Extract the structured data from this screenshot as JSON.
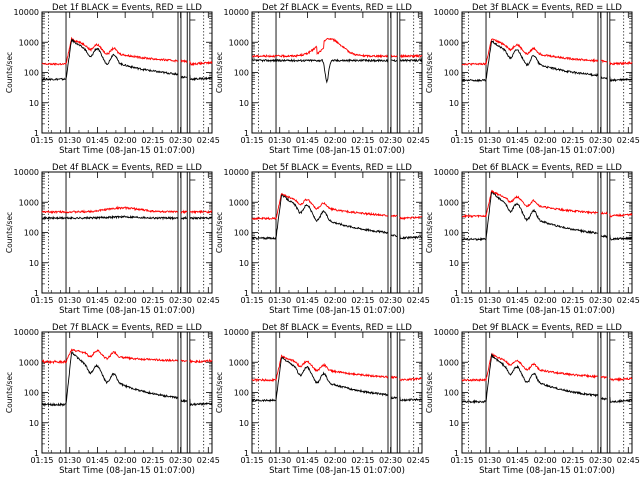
{
  "figure": {
    "start_time_label": "Start Time (08-Jan-15 01:07:00)",
    "ylabel": "Counts/sec",
    "colors": {
      "events": "#000000",
      "lld": "#ff0000",
      "axis": "#000000",
      "background": "#ffffff"
    }
  },
  "chart_data": [
    {
      "type": "line",
      "title": "Det 1f BLACK = Events, RED = LLD",
      "det": 1,
      "profile": "flare",
      "events_base": 60,
      "events_peak": 1200,
      "lld_base": 190,
      "lld_peak": 1300,
      "dip": false,
      "xlabel": "Start Time (08-Jan-15 01:07:00)",
      "ylabel": "Counts/sec",
      "xticks": [
        "01:15",
        "01:30",
        "01:45",
        "02:00",
        "02:15",
        "02:30",
        "02:45"
      ],
      "yticks": [
        "1",
        "10",
        "100",
        "1000",
        "10000"
      ],
      "ylim": [
        1,
        10000
      ],
      "xlim_min": [
        8,
        100
      ],
      "series": [
        {
          "name": "Events",
          "color": "#000000"
        },
        {
          "name": "LLD",
          "color": "#ff0000"
        }
      ]
    },
    {
      "type": "line",
      "title": "Det 2f BLACK = Events, RED = LLD",
      "det": 2,
      "profile": "flat_bump",
      "events_base": 250,
      "events_peak": 260,
      "lld_base": 350,
      "lld_peak": 1300,
      "dip": true,
      "xlabel": "Start Time (08-Jan-15 01:07:00)",
      "ylabel": "Counts/sec",
      "xticks": [
        "01:15",
        "01:30",
        "01:45",
        "02:00",
        "02:15",
        "02:30",
        "02:45"
      ],
      "yticks": [
        "1",
        "10",
        "100",
        "1000",
        "10000"
      ],
      "ylim": [
        1,
        10000
      ],
      "xlim_min": [
        8,
        100
      ],
      "series": [
        {
          "name": "Events",
          "color": "#000000"
        },
        {
          "name": "LLD",
          "color": "#ff0000"
        }
      ]
    },
    {
      "type": "line",
      "title": "Det 3f BLACK = Events, RED = LLD",
      "det": 3,
      "profile": "flare",
      "events_base": 55,
      "events_peak": 1100,
      "lld_base": 190,
      "lld_peak": 1300,
      "dip": false,
      "xlabel": "Start Time (08-Jan-15 01:07:00)",
      "ylabel": "Counts/sec",
      "xticks": [
        "01:15",
        "01:30",
        "01:45",
        "02:00",
        "02:15",
        "02:30",
        "02:45"
      ],
      "yticks": [
        "1",
        "10",
        "100",
        "1000",
        "10000"
      ],
      "ylim": [
        1,
        10000
      ],
      "xlim_min": [
        8,
        100
      ],
      "series": [
        {
          "name": "Events",
          "color": "#000000"
        },
        {
          "name": "LLD",
          "color": "#ff0000"
        }
      ]
    },
    {
      "type": "line",
      "title": "Det 4f BLACK = Events, RED = LLD",
      "det": 4,
      "profile": "flat",
      "events_base": 300,
      "events_peak": 330,
      "lld_base": 480,
      "lld_peak": 650,
      "dip": false,
      "xlabel": "Start Time (08-Jan-15 01:07:00)",
      "ylabel": "Counts/sec",
      "xticks": [
        "01:15",
        "01:30",
        "01:45",
        "02:00",
        "02:15",
        "02:30",
        "02:45"
      ],
      "yticks": [
        "1",
        "10",
        "100",
        "1000",
        "10000"
      ],
      "ylim": [
        1,
        10000
      ],
      "xlim_min": [
        8,
        100
      ],
      "series": [
        {
          "name": "Events",
          "color": "#000000"
        },
        {
          "name": "LLD",
          "color": "#ff0000"
        }
      ]
    },
    {
      "type": "line",
      "title": "Det 5f BLACK = Events, RED = LLD",
      "det": 5,
      "profile": "flare",
      "events_base": 65,
      "events_peak": 1800,
      "lld_base": 290,
      "lld_peak": 1900,
      "dip": false,
      "xlabel": "Start Time (08-Jan-15 01:07:00)",
      "ylabel": "Counts/sec",
      "xticks": [
        "01:15",
        "01:30",
        "01:45",
        "02:00",
        "02:15",
        "02:30",
        "02:45"
      ],
      "yticks": [
        "1",
        "10",
        "100",
        "1000",
        "10000"
      ],
      "ylim": [
        1,
        10000
      ],
      "xlim_min": [
        8,
        100
      ],
      "series": [
        {
          "name": "Events",
          "color": "#000000"
        },
        {
          "name": "LLD",
          "color": "#ff0000"
        }
      ]
    },
    {
      "type": "line",
      "title": "Det 6f BLACK = Events, RED = LLD",
      "det": 6,
      "profile": "flare",
      "events_base": 60,
      "events_peak": 2200,
      "lld_base": 350,
      "lld_peak": 2300,
      "dip": false,
      "xlabel": "Start Time (08-Jan-15 01:07:00)",
      "ylabel": "Counts/sec",
      "xticks": [
        "01:15",
        "01:30",
        "01:45",
        "02:00",
        "02:15",
        "02:30",
        "02:45"
      ],
      "yticks": [
        "1",
        "10",
        "100",
        "1000",
        "10000"
      ],
      "ylim": [
        1,
        10000
      ],
      "xlim_min": [
        8,
        100
      ],
      "series": [
        {
          "name": "Events",
          "color": "#000000"
        },
        {
          "name": "LLD",
          "color": "#ff0000"
        }
      ]
    },
    {
      "type": "line",
      "title": "Det 7f BLACK = Events, RED = LLD",
      "det": 7,
      "profile": "flare_hi_lld",
      "events_base": 40,
      "events_peak": 2200,
      "lld_base": 1000,
      "lld_peak": 2600,
      "dip": false,
      "xlabel": "Start Time (08-Jan-15 01:07:00)",
      "ylabel": "Counts/sec",
      "xticks": [
        "01:15",
        "01:30",
        "01:45",
        "02:00",
        "02:15",
        "02:30",
        "02:45"
      ],
      "yticks": [
        "1",
        "10",
        "100",
        "1000",
        "10000"
      ],
      "ylim": [
        1,
        10000
      ],
      "xlim_min": [
        8,
        100
      ],
      "series": [
        {
          "name": "Events",
          "color": "#000000"
        },
        {
          "name": "LLD",
          "color": "#ff0000"
        }
      ]
    },
    {
      "type": "line",
      "title": "Det 8f BLACK = Events, RED = LLD",
      "det": 8,
      "profile": "flare",
      "events_base": 55,
      "events_peak": 1500,
      "lld_base": 260,
      "lld_peak": 1600,
      "dip": false,
      "xlabel": "Start Time (08-Jan-15 01:07:00)",
      "ylabel": "Counts/sec",
      "xticks": [
        "01:15",
        "01:30",
        "01:45",
        "02:00",
        "02:15",
        "02:30",
        "02:45"
      ],
      "yticks": [
        "1",
        "10",
        "100",
        "1000",
        "10000"
      ],
      "ylim": [
        1,
        10000
      ],
      "xlim_min": [
        8,
        100
      ],
      "series": [
        {
          "name": "Events",
          "color": "#000000"
        },
        {
          "name": "LLD",
          "color": "#ff0000"
        }
      ]
    },
    {
      "type": "line",
      "title": "Det 9f BLACK = Events, RED = LLD",
      "det": 9,
      "profile": "flare",
      "events_base": 50,
      "events_peak": 1700,
      "lld_base": 260,
      "lld_peak": 1800,
      "dip": false,
      "xlabel": "Start Time (08-Jan-15 01:07:00)",
      "ylabel": "Counts/sec",
      "xticks": [
        "01:15",
        "01:30",
        "01:45",
        "02:00",
        "02:15",
        "02:30",
        "02:45"
      ],
      "yticks": [
        "1",
        "10",
        "100",
        "1000",
        "10000"
      ],
      "ylim": [
        1,
        10000
      ],
      "xlim_min": [
        8,
        100
      ],
      "series": [
        {
          "name": "Events",
          "color": "#000000"
        },
        {
          "name": "LLD",
          "color": "#ff0000"
        }
      ]
    }
  ]
}
